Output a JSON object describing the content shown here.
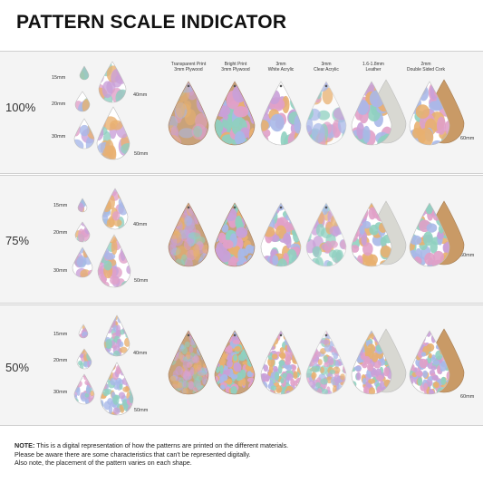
{
  "title": "PATTERN SCALE INDICATOR",
  "rows": [
    {
      "label": "100%",
      "sizes": [
        "15mm",
        "20mm",
        "30mm"
      ],
      "big_sizes": [
        "40mm",
        "50mm"
      ],
      "right_size": "60mm"
    },
    {
      "label": "75%",
      "sizes": [
        "15mm",
        "20mm",
        "30mm"
      ],
      "big_sizes": [
        "40mm",
        "50mm"
      ],
      "right_size": "60mm"
    },
    {
      "label": "50%",
      "sizes": [
        "15mm",
        "20mm",
        "30mm"
      ],
      "big_sizes": [
        "40mm",
        "50mm"
      ],
      "right_size": "60mm"
    }
  ],
  "materials": [
    {
      "line1": "Transparent Print",
      "line2": "3mm Plywood"
    },
    {
      "line1": "Bright Print",
      "line2": "3mm Plywood"
    },
    {
      "line1": "3mm",
      "line2": "White Acrylic"
    },
    {
      "line1": "3mm",
      "line2": "Clear Acrylic"
    },
    {
      "line1": "1.6-1.8mm",
      "line2": "Leather"
    },
    {
      "line1": "2mm",
      "line2": "Double Sided Cork"
    }
  ],
  "note": {
    "label": "NOTE:",
    "line1": "This is a digital representation of how the patterns are printed on the different materials.",
    "line2": "Please be aware there are some characteristics that can't be represented digitally.",
    "line3": "Also note, the placement of the pattern varies on each shape."
  },
  "colors": {
    "pattern": [
      "#c9a0d8",
      "#8fd0c0",
      "#e8b070",
      "#a8b8e8",
      "#e0a0c8"
    ],
    "plywood": "#c9a27a",
    "cork": "#c99a66",
    "leather": "#d8d8d2",
    "band": "#f4f4f4"
  }
}
